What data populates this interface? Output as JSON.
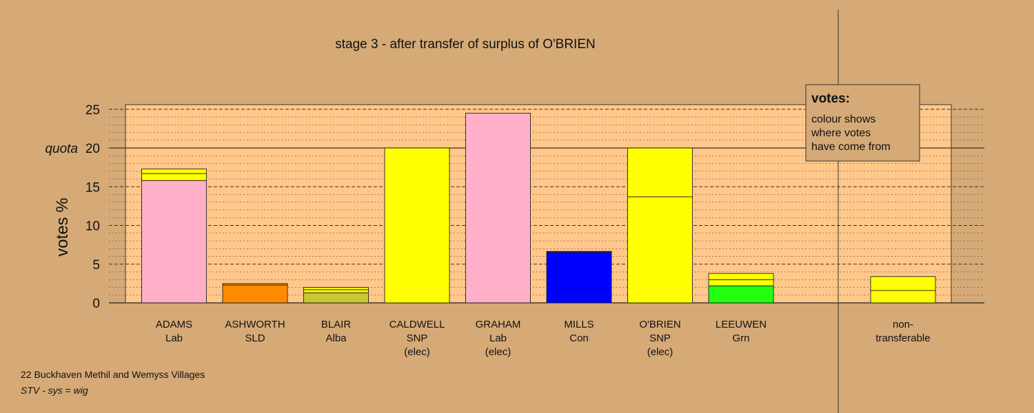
{
  "chart_data": {
    "type": "bar",
    "stacked": true,
    "title": "stage 3 - after transfer of surplus of O'BRIEN",
    "ylabel": "votes %",
    "ylim": [
      0,
      25.7
    ],
    "yticks": [
      0,
      5,
      10,
      15,
      20,
      25
    ],
    "quota": {
      "value": 20,
      "label": "quota"
    },
    "grid": true,
    "categories": [
      {
        "name": "ADAMS",
        "party": "Lab",
        "status": ""
      },
      {
        "name": "ASHWORTH",
        "party": "SLD",
        "status": ""
      },
      {
        "name": "BLAIR",
        "party": "Alba",
        "status": ""
      },
      {
        "name": "CALDWELL",
        "party": "SNP",
        "status": "(elec)"
      },
      {
        "name": "GRAHAM",
        "party": "Lab",
        "status": "(elec)"
      },
      {
        "name": "MILLS",
        "party": "Con",
        "status": ""
      },
      {
        "name": "O'BRIEN",
        "party": "SNP",
        "status": "(elec)"
      },
      {
        "name": "LEEUWEN",
        "party": "Grn",
        "status": ""
      },
      {
        "name": "non-",
        "party": "transferable",
        "status": ""
      }
    ],
    "stacks": [
      [
        {
          "value": 15.8,
          "color": "#ffb0c8"
        },
        {
          "value": 0.9,
          "color": "#ffff00"
        },
        {
          "value": 0.6,
          "color": "#ffff00"
        }
      ],
      [
        {
          "value": 2.3,
          "color": "#ff8c00"
        },
        {
          "value": 0.2,
          "color": "#ff8c00"
        }
      ],
      [
        {
          "value": 1.3,
          "color": "#c8c832"
        },
        {
          "value": 0.4,
          "color": "#ffff00"
        },
        {
          "value": 0.3,
          "color": "#ffff00"
        }
      ],
      [
        {
          "value": 20.0,
          "color": "#ffff00"
        }
      ],
      [
        {
          "value": 24.5,
          "color": "#ffb0c8"
        }
      ],
      [
        {
          "value": 6.5,
          "color": "#0000ff"
        },
        {
          "value": 0.15,
          "color": "#0000ff"
        }
      ],
      [
        {
          "value": 13.7,
          "color": "#ffff00"
        },
        {
          "value": 6.3,
          "color": "#ffff00"
        }
      ],
      [
        {
          "value": 2.2,
          "color": "#22ff11"
        },
        {
          "value": 0.8,
          "color": "#ffff00"
        },
        {
          "value": 0.8,
          "color": "#ffff00"
        }
      ],
      [
        {
          "value": 1.6,
          "color": "#ffff00"
        },
        {
          "value": 1.8,
          "color": "#ffff00"
        }
      ]
    ],
    "legend": {
      "title": "votes:",
      "lines": [
        "colour shows",
        "where votes",
        "have come from"
      ],
      "placement": "top-right"
    }
  },
  "footer": {
    "line1": "22 Buckhaven Methil and Wemyss Villages",
    "line2": "STV - sys = wig"
  },
  "colors": {
    "background": "#d5aa77",
    "plot_background": "#ffc88a"
  }
}
